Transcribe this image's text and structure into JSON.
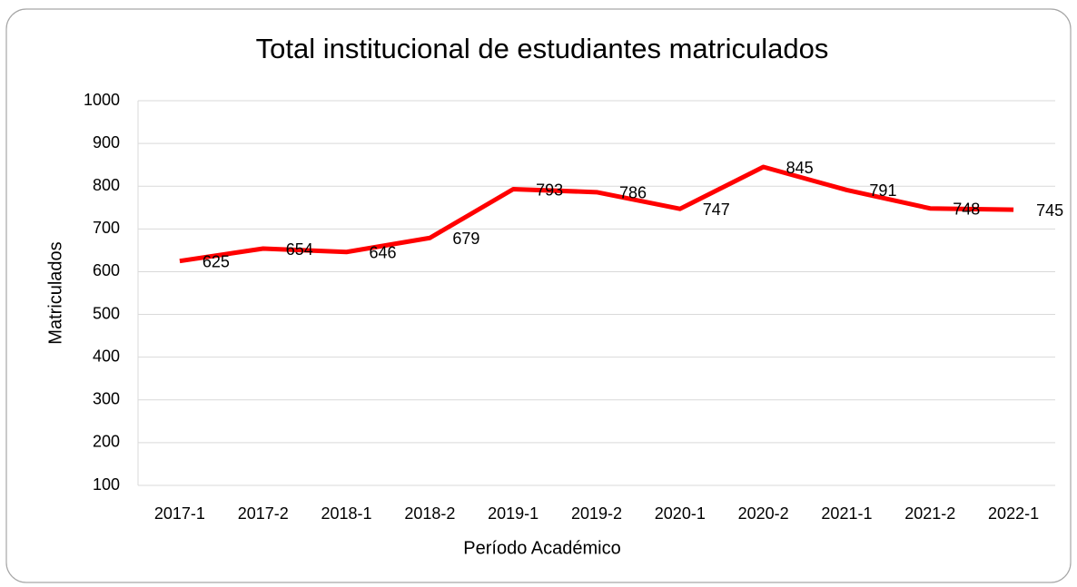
{
  "chart_data": {
    "type": "line",
    "title": "Total institucional de estudiantes matriculados",
    "x_label": "Período Académico",
    "y_label": "Matriculados",
    "categories": [
      "2017-1",
      "2017-2",
      "2018-1",
      "2018-2",
      "2019-1",
      "2019-2",
      "2020-1",
      "2020-2",
      "2021-1",
      "2021-2",
      "2022-1"
    ],
    "series": [
      {
        "name": "Matriculados",
        "color": "#ff0000",
        "values": [
          625,
          654,
          646,
          679,
          793,
          786,
          747,
          845,
          791,
          748,
          745
        ]
      }
    ],
    "ylim": [
      100,
      1000
    ],
    "yticks": [
      100,
      200,
      300,
      400,
      500,
      600,
      700,
      800,
      900,
      1000
    ],
    "grid": true
  }
}
